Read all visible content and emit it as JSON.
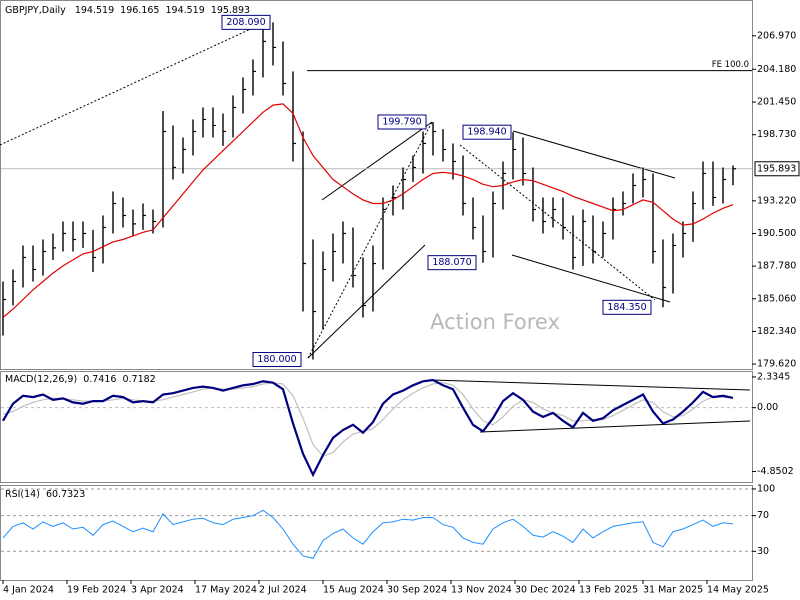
{
  "chart_data": [
    {
      "type": "ohlc",
      "title": "GBPJPY,Daily",
      "last_open": 194.519,
      "color": "#000000",
      "high": [
        186.5,
        187.5,
        189.5,
        189.5,
        190,
        190.5,
        191.5,
        191.5,
        191.5,
        190.8,
        192,
        194,
        193.5,
        192.5,
        193,
        192.5,
        200.7,
        199.5,
        198.5,
        200,
        201,
        201,
        200.5,
        202,
        203.5,
        205,
        207.5,
        208.09,
        206.5,
        204,
        199,
        190,
        189,
        190.5,
        191.5,
        191,
        188.5,
        189.5,
        193.5,
        194.5,
        196,
        197,
        199,
        199.79,
        199.2,
        198,
        197,
        193.5,
        192,
        194,
        196.5,
        198.94,
        198.5,
        196,
        193.5,
        193.5,
        193.5,
        192,
        192.5,
        192,
        191.5,
        193.5,
        194,
        195.5,
        196,
        195.5,
        190,
        190.5,
        191.5,
        194,
        196.5,
        196.5,
        196,
        196.165
      ],
      "low": [
        182,
        184.5,
        186,
        186.5,
        187,
        188.3,
        189,
        189,
        189.3,
        187.3,
        188,
        190.5,
        191,
        190.3,
        190.8,
        190.5,
        191,
        195,
        195.5,
        197,
        198.5,
        198.5,
        197.8,
        198.5,
        200.5,
        202,
        203.5,
        204.5,
        202,
        196.5,
        184,
        180,
        182.5,
        186.5,
        188,
        186,
        183.5,
        184,
        187.5,
        192,
        192.5,
        194.8,
        195.5,
        197,
        196.5,
        195,
        192,
        190,
        188.07,
        188.5,
        192.5,
        195,
        194.5,
        191.5,
        190.5,
        191,
        190,
        187.5,
        187.8,
        188,
        188.5,
        190,
        192,
        193,
        193.5,
        188,
        184.35,
        185.5,
        188.5,
        189.8,
        192.5,
        192.8,
        193,
        194.519
      ],
      "close": [
        185,
        186.5,
        188.5,
        187.5,
        189,
        189.3,
        190.5,
        190,
        190.5,
        188.5,
        191,
        193,
        192,
        191.3,
        192,
        191.5,
        199,
        196,
        197.5,
        199,
        200,
        199.5,
        199,
        201,
        202.5,
        204,
        206.5,
        206,
        203,
        198,
        188,
        184,
        187.5,
        189,
        190.5,
        187,
        184.5,
        188,
        192.5,
        193.5,
        195,
        196,
        198,
        199,
        197.5,
        196.5,
        193,
        191,
        189,
        193,
        195.5,
        197.5,
        195.5,
        192.5,
        191.5,
        192.5,
        191,
        188.5,
        191.5,
        189,
        190.5,
        192.5,
        193,
        194.5,
        195,
        189,
        186,
        189.5,
        190.5,
        193,
        195.5,
        193.5,
        195,
        195.893
      ],
      "overlay": {
        "color": "#e00000",
        "values": [
          183.5,
          184.2,
          185,
          185.8,
          186.5,
          187.2,
          187.8,
          188.3,
          188.8,
          189,
          189.4,
          189.8,
          190,
          190.3,
          190.6,
          190.8,
          191.8,
          192.8,
          193.8,
          194.8,
          195.8,
          196.6,
          197.4,
          198.2,
          199,
          199.8,
          200.6,
          201.2,
          201.3,
          200.5,
          198.5,
          197,
          196,
          195,
          194.4,
          193.8,
          193.3,
          193,
          193,
          193.3,
          193.8,
          194.4,
          195,
          195.5,
          195.6,
          195.5,
          195.3,
          195,
          194.6,
          194.4,
          194.5,
          194.8,
          195,
          194.9,
          194.6,
          194.3,
          194,
          193.6,
          193.3,
          193,
          192.7,
          192.4,
          192.5,
          192.9,
          193.3,
          193.1,
          192.4,
          191.7,
          191.2,
          191.3,
          191.7,
          192.2,
          192.6,
          192.9
        ]
      },
      "xlim": [
        0,
        74
      ],
      "xticks": [
        {
          "value": 0,
          "label": "4 Jan 2024"
        },
        {
          "value": 6.4,
          "label": "19 Feb 2024"
        },
        {
          "value": 12.8,
          "label": "3 Apr 2024"
        },
        {
          "value": 19.2,
          "label": "17 May 2024"
        },
        {
          "value": 25.6,
          "label": "2 Jul 2024"
        },
        {
          "value": 32,
          "label": "15 Aug 2024"
        },
        {
          "value": 38.4,
          "label": "30 Sep 2024"
        },
        {
          "value": 44.8,
          "label": "13 Nov 2024"
        },
        {
          "value": 51.2,
          "label": "30 Dec 2024"
        },
        {
          "value": 57.6,
          "label": "13 Feb 2025"
        },
        {
          "value": 64,
          "label": "31 Mar 2025"
        },
        {
          "value": 70.4,
          "label": "14 May 2025"
        }
      ],
      "ylim": [
        179.21,
        209.87
      ],
      "yticks": [
        {
          "value": 179.62,
          "label": "179.620"
        },
        {
          "value": 182.34,
          "label": "182.340"
        },
        {
          "value": 185.06,
          "label": "185.060"
        },
        {
          "value": 187.78,
          "label": "187.780"
        },
        {
          "value": 190.5,
          "label": "190.500"
        },
        {
          "value": 193.22,
          "label": "193.220"
        },
        {
          "value": 198.73,
          "label": "198.730"
        },
        {
          "value": 201.45,
          "label": "201.450"
        },
        {
          "value": 204.18,
          "label": "204.180"
        },
        {
          "value": 206.97,
          "label": "206.970"
        }
      ],
      "annotations": [
        {
          "value": 208.09,
          "label": "208.090"
        },
        {
          "value": 199.79,
          "label": "199.790"
        },
        {
          "value": 198.94,
          "label": "198.940"
        },
        {
          "value": 188.07,
          "label": "188.070"
        },
        {
          "value": 184.35,
          "label": "184.350"
        },
        {
          "value": 180,
          "label": "180.000"
        }
      ],
      "fe_level": {
        "value": 204.07,
        "label": "FE 100.0"
      },
      "watermark": "Action Forex"
    },
    {
      "type": "macd",
      "title": "MACD(12,26,9)",
      "color": "#000080",
      "values": [
        -1,
        0.3,
        0.9,
        0.8,
        1,
        0.6,
        0.7,
        0.4,
        0.3,
        0.5,
        0.5,
        0.9,
        0.8,
        0.4,
        0.5,
        0.4,
        1,
        1.1,
        1.3,
        1.5,
        1.6,
        1.5,
        1.3,
        1.5,
        1.7,
        1.8,
        2.0,
        1.9,
        1.4,
        -1.2,
        -3.5,
        -5.1,
        -3.6,
        -2.3,
        -1.7,
        -1.3,
        -1.9,
        -1.1,
        0.3,
        1.0,
        1.3,
        1.7,
        2.0,
        2.1,
        1.7,
        1.4,
        0.0,
        -1.3,
        -1.8,
        -0.8,
        0.5,
        1.1,
        0.6,
        -0.3,
        -0.7,
        -0.4,
        -1.0,
        -1.5,
        -0.4,
        -1.0,
        -0.8,
        -0.2,
        0.2,
        0.6,
        1.0,
        -0.3,
        -1.2,
        -0.9,
        -0.3,
        0.4,
        1.2,
        0.8,
        0.9,
        0.7416
      ],
      "signal": {
        "color": "#c0c0c0",
        "values": [
          -0.5,
          -0.3,
          0.1,
          0.4,
          0.6,
          0.7,
          0.7,
          0.6,
          0.5,
          0.5,
          0.5,
          0.6,
          0.7,
          0.6,
          0.5,
          0.5,
          0.6,
          0.8,
          1.0,
          1.2,
          1.4,
          1.5,
          1.4,
          1.4,
          1.5,
          1.6,
          1.8,
          1.9,
          1.8,
          0.9,
          -0.8,
          -2.8,
          -3.7,
          -3.4,
          -2.6,
          -2.0,
          -1.8,
          -1.6,
          -0.9,
          -0.1,
          0.6,
          1.1,
          1.5,
          1.8,
          1.9,
          1.7,
          1.0,
          -0.1,
          -1.0,
          -1.3,
          -0.7,
          0.1,
          0.6,
          0.4,
          -0.1,
          -0.4,
          -0.6,
          -1.0,
          -1.0,
          -0.9,
          -0.9,
          -0.6,
          -0.2,
          0.2,
          0.6,
          0.4,
          -0.3,
          -0.7,
          -0.6,
          -0.1,
          0.5,
          0.8,
          0.8,
          0.7182
        ]
      },
      "ylim": [
        -5.65,
        2.71
      ],
      "yticks": [
        2.3345,
        {
          "value": 0,
          "label": "0.00"
        },
        -4.8502
      ]
    },
    {
      "type": "rsi",
      "title": "RSI(14)",
      "color": "#1e90ff",
      "values": [
        45,
        58,
        62,
        55,
        63,
        58,
        62,
        55,
        57,
        48,
        60,
        64,
        58,
        52,
        56,
        52,
        72,
        60,
        63,
        66,
        67,
        62,
        60,
        66,
        68,
        70,
        76,
        68,
        55,
        38,
        25,
        22,
        42,
        50,
        55,
        45,
        38,
        52,
        62,
        63,
        66,
        65,
        68,
        68,
        60,
        57,
        45,
        40,
        38,
        55,
        62,
        66,
        58,
        48,
        46,
        52,
        47,
        40,
        55,
        45,
        52,
        58,
        60,
        62,
        63,
        40,
        35,
        52,
        55,
        60,
        65,
        58,
        62,
        60.7323
      ],
      "ylim": [
        -2.2,
        103.3
      ],
      "yticks": [
        30,
        70,
        100
      ]
    }
  ]
}
